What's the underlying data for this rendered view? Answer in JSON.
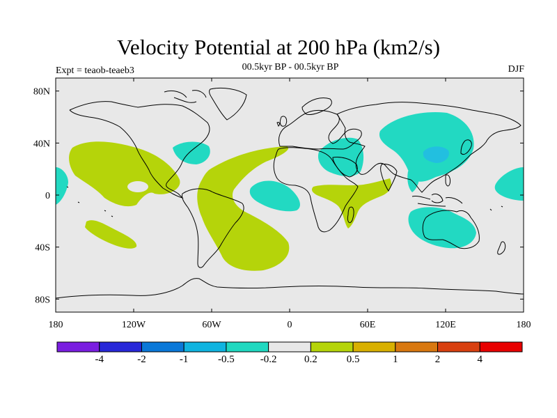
{
  "header": {
    "title": "Velocity Potential at 200 hPa (km2/s)",
    "subtitle": "00.5kyr BP - 00.5kyr BP",
    "left_label": "Expt = teaob-teaeb3",
    "right_label": "DJF"
  },
  "map": {
    "lat_ticks": [
      "80N",
      "40N",
      "0",
      "40S",
      "80S"
    ],
    "lon_ticks": [
      "180",
      "120W",
      "60W",
      "0",
      "60E",
      "120E",
      "180"
    ],
    "colors": {
      "ocean_land_background": "#e8e8e8",
      "positive_fill": "#b5d40a",
      "negative_fill": "#22d9c2",
      "strong_negative_fill": "#22bfe0",
      "coastline": "#000000"
    }
  },
  "colorbar": {
    "colors": [
      "#7a1ee0",
      "#2828d8",
      "#0a78d8",
      "#10b4e0",
      "#20d8c0",
      "#e8e8e8",
      "#b5d40a",
      "#d8b000",
      "#d87810",
      "#d84010",
      "#e80000"
    ],
    "labels": [
      "-4",
      "-2",
      "-1",
      "-0.5",
      "-0.2",
      "0.2",
      "0.5",
      "1",
      "2",
      "4"
    ]
  }
}
